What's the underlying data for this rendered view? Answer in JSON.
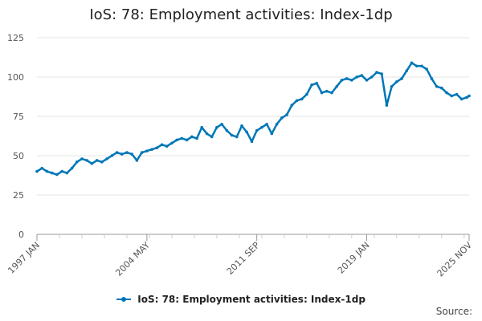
{
  "chart_data": {
    "type": "line",
    "title": "IoS: 78: Employment activities: Index-1dp",
    "xlabel": "",
    "ylabel": "",
    "x_tick_labels": [
      "1997 JAN",
      "2004 MAY",
      "2011 SEP",
      "2019 JAN",
      "2025 NOV"
    ],
    "y_ticks": [
      0,
      25,
      50,
      75,
      100,
      125
    ],
    "ylim": [
      0,
      125
    ],
    "xlim": [
      "1997 JAN",
      "2025 NOV"
    ],
    "grid": "horizontal",
    "legend_position": "bottom",
    "series": [
      {
        "name": "IoS: 78: Employment activities: Index-1dp",
        "color": "#0077b8",
        "points": [
          [
            "1997 JAN",
            40
          ],
          [
            "1997 MAY",
            42
          ],
          [
            "1997 SEP",
            40
          ],
          [
            "1998 JAN",
            39
          ],
          [
            "1998 MAY",
            38
          ],
          [
            "1998 SEP",
            40
          ],
          [
            "1999 JAN",
            39
          ],
          [
            "1999 MAY",
            42
          ],
          [
            "1999 SEP",
            46
          ],
          [
            "2000 JAN",
            48
          ],
          [
            "2000 MAY",
            47
          ],
          [
            "2000 SEP",
            45
          ],
          [
            "2001 JAN",
            47
          ],
          [
            "2001 MAY",
            46
          ],
          [
            "2001 SEP",
            48
          ],
          [
            "2002 JAN",
            50
          ],
          [
            "2002 MAY",
            52
          ],
          [
            "2002 SEP",
            51
          ],
          [
            "2003 JAN",
            52
          ],
          [
            "2003 MAY",
            51
          ],
          [
            "2003 SEP",
            47
          ],
          [
            "2004 JAN",
            52
          ],
          [
            "2004 MAY",
            53
          ],
          [
            "2004 SEP",
            54
          ],
          [
            "2005 JAN",
            55
          ],
          [
            "2005 MAY",
            57
          ],
          [
            "2005 SEP",
            56
          ],
          [
            "2006 JAN",
            58
          ],
          [
            "2006 MAY",
            60
          ],
          [
            "2006 SEP",
            61
          ],
          [
            "2007 JAN",
            60
          ],
          [
            "2007 MAY",
            62
          ],
          [
            "2007 SEP",
            61
          ],
          [
            "2008 JAN",
            68
          ],
          [
            "2008 MAY",
            64
          ],
          [
            "2008 SEP",
            62
          ],
          [
            "2009 JAN",
            68
          ],
          [
            "2009 MAY",
            70
          ],
          [
            "2009 SEP",
            66
          ],
          [
            "2010 JAN",
            63
          ],
          [
            "2010 MAY",
            62
          ],
          [
            "2010 SEP",
            69
          ],
          [
            "2011 JAN",
            65
          ],
          [
            "2011 MAY",
            59
          ],
          [
            "2011 SEP",
            66
          ],
          [
            "2012 JAN",
            68
          ],
          [
            "2012 MAY",
            70
          ],
          [
            "2012 SEP",
            64
          ],
          [
            "2013 JAN",
            70
          ],
          [
            "2013 MAY",
            74
          ],
          [
            "2013 SEP",
            76
          ],
          [
            "2014 JAN",
            82
          ],
          [
            "2014 MAY",
            85
          ],
          [
            "2014 SEP",
            86
          ],
          [
            "2015 JAN",
            89
          ],
          [
            "2015 MAY",
            95
          ],
          [
            "2015 SEP",
            96
          ],
          [
            "2016 JAN",
            90
          ],
          [
            "2016 MAY",
            91
          ],
          [
            "2016 SEP",
            90
          ],
          [
            "2017 JAN",
            94
          ],
          [
            "2017 MAY",
            98
          ],
          [
            "2017 SEP",
            99
          ],
          [
            "2018 JAN",
            98
          ],
          [
            "2018 MAY",
            100
          ],
          [
            "2018 SEP",
            101
          ],
          [
            "2019 JAN",
            98
          ],
          [
            "2019 MAY",
            100
          ],
          [
            "2019 SEP",
            103
          ],
          [
            "2020 JAN",
            102
          ],
          [
            "2020 MAY",
            82
          ],
          [
            "2020 SEP",
            94
          ],
          [
            "2021 JAN",
            97
          ],
          [
            "2021 MAY",
            99
          ],
          [
            "2021 SEP",
            104
          ],
          [
            "2022 JAN",
            109
          ],
          [
            "2022 MAY",
            107
          ],
          [
            "2022 SEP",
            107
          ],
          [
            "2023 JAN",
            105
          ],
          [
            "2023 MAY",
            99
          ],
          [
            "2023 SEP",
            94
          ],
          [
            "2024 JAN",
            93
          ],
          [
            "2024 MAY",
            90
          ],
          [
            "2024 SEP",
            88
          ],
          [
            "2025 JAN",
            89
          ],
          [
            "2025 MAY",
            86
          ],
          [
            "2025 SEP",
            87
          ],
          [
            "2025 NOV",
            88
          ]
        ]
      }
    ]
  },
  "legend_label": "IoS: 78: Employment activities: Index-1dp",
  "source_label": "Source:"
}
